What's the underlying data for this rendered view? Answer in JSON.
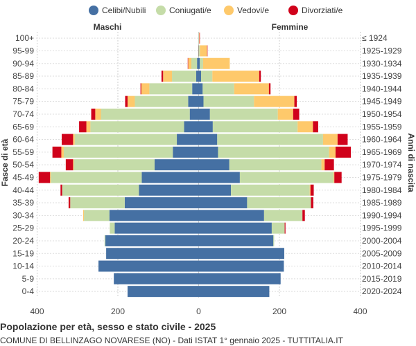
{
  "chart_data": {
    "type": "bar",
    "orientation": "horizontal-population-pyramid",
    "title": "Popolazione per età, sesso e stato civile - 2025",
    "subtitle": "COMUNE DI BELLINZAGO NOVARESE (NO) - Dati ISTAT 1° gennaio 2025 - TUTTITALIA.IT",
    "left_label": "Maschi",
    "right_label": "Femmine",
    "ylabel_left": "Fasce di età",
    "ylabel_right": "Anni di nascita",
    "x_ticks": [
      "400",
      "200",
      "0",
      "200",
      "400"
    ],
    "xlim": [
      -400,
      400
    ],
    "grid": true,
    "legend_position": "top",
    "series_names": [
      "Celibi/Nubili",
      "Coniugati/e",
      "Vedovi/e",
      "Divorziati/e"
    ],
    "colors": {
      "celibi": "#4570a3",
      "coniugati": "#c5dca8",
      "vedovi": "#fec96b",
      "divorziati": "#d0021b"
    },
    "age_groups": [
      "100+",
      "95-99",
      "90-94",
      "85-89",
      "80-84",
      "75-79",
      "70-74",
      "65-69",
      "60-64",
      "55-59",
      "50-54",
      "45-49",
      "40-44",
      "35-39",
      "30-34",
      "25-29",
      "20-24",
      "15-19",
      "10-14",
      "5-9",
      "0-4"
    ],
    "birth_years": [
      "≤ 1924",
      "1925-1929",
      "1930-1934",
      "1935-1939",
      "1940-1944",
      "1945-1949",
      "1950-1954",
      "1955-1959",
      "1960-1964",
      "1965-1969",
      "1970-1974",
      "1975-1979",
      "1980-1984",
      "1985-1989",
      "1990-1994",
      "1995-1999",
      "2000-2004",
      "2005-2009",
      "2010-2014",
      "2015-2019",
      "2020-2024"
    ],
    "male": {
      "celibi": [
        0,
        0,
        4,
        6,
        16,
        26,
        22,
        36,
        54,
        64,
        109,
        141,
        148,
        183,
        221,
        208,
        231,
        229,
        248,
        210,
        176
      ],
      "coniugati": [
        0,
        0,
        14,
        60,
        106,
        132,
        220,
        232,
        253,
        270,
        200,
        225,
        190,
        135,
        63,
        12,
        2,
        0,
        0,
        0,
        0
      ],
      "vedovi": [
        0,
        1,
        8,
        22,
        20,
        18,
        14,
        10,
        4,
        6,
        2,
        2,
        0,
        0,
        2,
        0,
        0,
        0,
        0,
        0,
        0
      ],
      "divorziati": [
        0,
        0,
        1,
        4,
        2,
        6,
        10,
        18,
        28,
        22,
        18,
        28,
        4,
        4,
        0,
        0,
        0,
        0,
        0,
        0,
        0
      ]
    },
    "female": {
      "celibi": [
        0,
        1,
        3,
        6,
        10,
        12,
        28,
        35,
        46,
        48,
        76,
        102,
        80,
        120,
        162,
        181,
        185,
        212,
        211,
        203,
        175
      ],
      "coniugati": [
        1,
        2,
        8,
        28,
        78,
        125,
        168,
        210,
        262,
        275,
        228,
        232,
        195,
        158,
        95,
        32,
        2,
        0,
        0,
        0,
        0
      ],
      "vedovi": [
        1,
        18,
        66,
        116,
        86,
        100,
        38,
        38,
        36,
        16,
        8,
        2,
        2,
        0,
        0,
        0,
        0,
        0,
        0,
        0,
        0
      ],
      "divorziati": [
        1,
        1,
        0,
        4,
        4,
        6,
        15,
        13,
        25,
        38,
        23,
        18,
        8,
        6,
        6,
        2,
        0,
        0,
        0,
        0,
        0
      ]
    }
  }
}
